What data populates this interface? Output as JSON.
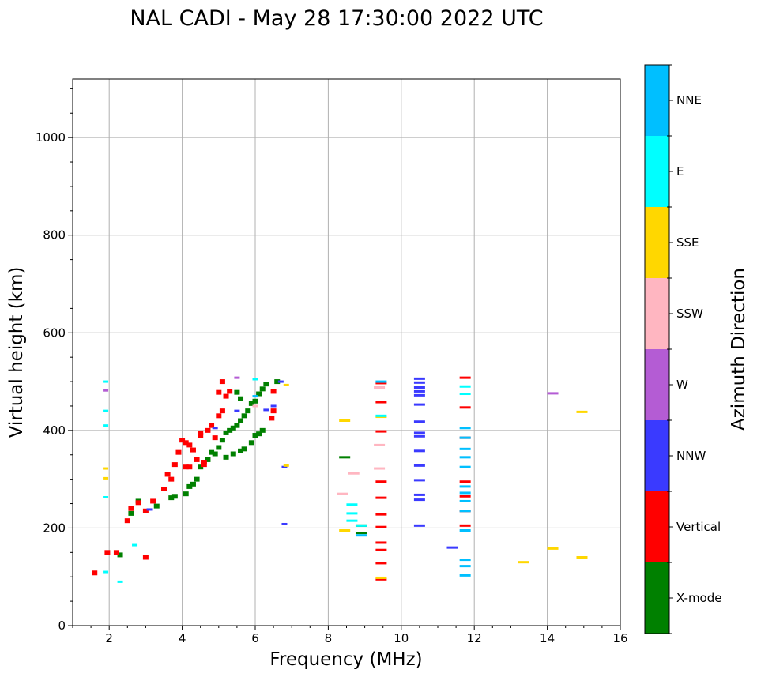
{
  "chart_data": {
    "type": "scatter",
    "title": "NAL CADI - May 28 17:30:00 2022 UTC",
    "xlabel": "Frequency (MHz)",
    "ylabel": "Virtual height (km)",
    "xlim": [
      1,
      16
    ],
    "ylim": [
      0,
      1120
    ],
    "xticks": [
      2,
      4,
      6,
      8,
      10,
      12,
      14,
      16
    ],
    "yticks": [
      0,
      200,
      400,
      600,
      800,
      1000
    ],
    "grid": true,
    "colorbar": {
      "label": "Azimuth Direction",
      "categories": [
        "X-mode",
        "Vertical",
        "NNW",
        "W",
        "SSW",
        "SSE",
        "E",
        "NNE"
      ],
      "colors": [
        "#008000",
        "#ff0000",
        "#3a3aff",
        "#b45cd4",
        "#ffb6c1",
        "#ffd700",
        "#00ffff",
        "#00bfff"
      ]
    },
    "series": [
      {
        "name": "X-mode",
        "points": [
          [
            2.3,
            145
          ],
          [
            2.6,
            230
          ],
          [
            2.8,
            255
          ],
          [
            3.3,
            245
          ],
          [
            3.7,
            262
          ],
          [
            3.8,
            265
          ],
          [
            4.1,
            270
          ],
          [
            4.2,
            285
          ],
          [
            4.4,
            300
          ],
          [
            4.5,
            325
          ],
          [
            4.7,
            340
          ],
          [
            4.8,
            355
          ],
          [
            5.0,
            365
          ],
          [
            5.1,
            380
          ],
          [
            5.2,
            395
          ],
          [
            5.3,
            400
          ],
          [
            5.4,
            405
          ],
          [
            5.5,
            410
          ],
          [
            5.6,
            420
          ],
          [
            5.7,
            430
          ],
          [
            5.6,
            465
          ],
          [
            5.8,
            440
          ],
          [
            5.9,
            455
          ],
          [
            6.0,
            460
          ],
          [
            6.1,
            475
          ],
          [
            6.2,
            485
          ],
          [
            6.3,
            495
          ],
          [
            6.6,
            500
          ],
          [
            5.4,
            352
          ],
          [
            5.6,
            358
          ],
          [
            5.7,
            362
          ],
          [
            5.9,
            375
          ],
          [
            6.0,
            390
          ],
          [
            6.1,
            393
          ],
          [
            6.2,
            400
          ],
          [
            5.2,
            345
          ],
          [
            4.9,
            352
          ],
          [
            8.45,
            345
          ],
          [
            8.9,
            190
          ],
          [
            8.9,
            205
          ],
          [
            5.5,
            478
          ],
          [
            4.3,
            290
          ]
        ]
      },
      {
        "name": "Vertical",
        "points": [
          [
            1.6,
            108
          ],
          [
            1.95,
            150
          ],
          [
            2.2,
            150
          ],
          [
            2.5,
            215
          ],
          [
            2.6,
            240
          ],
          [
            2.8,
            252
          ],
          [
            3.0,
            235
          ],
          [
            3.2,
            255
          ],
          [
            3.5,
            280
          ],
          [
            3.7,
            300
          ],
          [
            3.8,
            330
          ],
          [
            3.9,
            355
          ],
          [
            4.0,
            380
          ],
          [
            4.1,
            375
          ],
          [
            4.2,
            370
          ],
          [
            4.3,
            360
          ],
          [
            4.4,
            340
          ],
          [
            4.6,
            335
          ],
          [
            4.7,
            400
          ],
          [
            4.8,
            410
          ],
          [
            5.0,
            430
          ],
          [
            5.1,
            440
          ],
          [
            5.2,
            470
          ],
          [
            5.3,
            480
          ],
          [
            4.9,
            385
          ],
          [
            4.5,
            395
          ],
          [
            4.2,
            325
          ],
          [
            5.0,
            478
          ],
          [
            5.1,
            500
          ],
          [
            6.5,
            480
          ],
          [
            6.5,
            440
          ],
          [
            6.45,
            425
          ],
          [
            3.0,
            140
          ],
          [
            4.1,
            325
          ],
          [
            4.5,
            390
          ],
          [
            9.45,
            95
          ],
          [
            9.45,
            128
          ],
          [
            9.45,
            155
          ],
          [
            9.45,
            170
          ],
          [
            9.45,
            202
          ],
          [
            9.45,
            228
          ],
          [
            9.45,
            262
          ],
          [
            9.45,
            295
          ],
          [
            9.45,
            398
          ],
          [
            9.45,
            458
          ],
          [
            9.45,
            497
          ],
          [
            11.75,
            205
          ],
          [
            11.75,
            235
          ],
          [
            11.75,
            265
          ],
          [
            11.75,
            295
          ],
          [
            11.75,
            385
          ],
          [
            11.75,
            447
          ],
          [
            11.75,
            508
          ],
          [
            4.6,
            330
          ],
          [
            3.6,
            310
          ]
        ]
      },
      {
        "name": "NNW",
        "points": [
          [
            6.8,
            208
          ],
          [
            10.5,
            205
          ],
          [
            10.5,
            258
          ],
          [
            10.5,
            268
          ],
          [
            10.5,
            298
          ],
          [
            10.5,
            328
          ],
          [
            10.5,
            358
          ],
          [
            10.5,
            388
          ],
          [
            10.5,
            395
          ],
          [
            10.5,
            418
          ],
          [
            10.5,
            453
          ],
          [
            10.5,
            472
          ],
          [
            10.5,
            480
          ],
          [
            10.5,
            488
          ],
          [
            10.5,
            498
          ],
          [
            10.5,
            506
          ],
          [
            11.4,
            160
          ],
          [
            6.8,
            325
          ],
          [
            6.7,
            500
          ],
          [
            6.5,
            450
          ],
          [
            6.3,
            442
          ],
          [
            4.9,
            405
          ],
          [
            5.5,
            440
          ],
          [
            3.1,
            238
          ]
        ]
      },
      {
        "name": "W",
        "points": [
          [
            14.15,
            476
          ],
          [
            5.5,
            508
          ],
          [
            1.9,
            482
          ]
        ]
      },
      {
        "name": "SSW",
        "points": [
          [
            8.4,
            270
          ],
          [
            8.7,
            312
          ],
          [
            9.4,
            322
          ],
          [
            9.4,
            370
          ],
          [
            9.4,
            488
          ],
          [
            6.0,
            450
          ]
        ]
      },
      {
        "name": "SSE",
        "points": [
          [
            13.35,
            130
          ],
          [
            14.15,
            158
          ],
          [
            14.95,
            140
          ],
          [
            14.95,
            438
          ],
          [
            8.45,
            420
          ],
          [
            8.45,
            195
          ],
          [
            6.85,
            328
          ],
          [
            6.85,
            493
          ],
          [
            9.45,
            98
          ],
          [
            9.45,
            428
          ],
          [
            1.9,
            302
          ],
          [
            1.9,
            322
          ]
        ]
      },
      {
        "name": "E",
        "points": [
          [
            2.3,
            90
          ],
          [
            1.9,
            110
          ],
          [
            1.9,
            263
          ],
          [
            1.9,
            410
          ],
          [
            1.9,
            440
          ],
          [
            1.9,
            500
          ],
          [
            8.65,
            215
          ],
          [
            8.65,
            230
          ],
          [
            8.65,
            248
          ],
          [
            8.9,
            205
          ],
          [
            9.45,
            430
          ],
          [
            11.75,
            475
          ],
          [
            11.75,
            490
          ],
          [
            2.7,
            165
          ],
          [
            6.0,
            505
          ]
        ]
      },
      {
        "name": "NNE",
        "points": [
          [
            11.75,
            103
          ],
          [
            11.75,
            122
          ],
          [
            11.75,
            135
          ],
          [
            11.75,
            195
          ],
          [
            11.75,
            235
          ],
          [
            11.75,
            255
          ],
          [
            11.75,
            272
          ],
          [
            11.75,
            285
          ],
          [
            11.75,
            325
          ],
          [
            11.75,
            345
          ],
          [
            11.75,
            362
          ],
          [
            11.75,
            385
          ],
          [
            11.75,
            405
          ],
          [
            8.9,
            185
          ],
          [
            9.45,
            500
          ],
          [
            6.0,
            470
          ]
        ]
      }
    ]
  }
}
